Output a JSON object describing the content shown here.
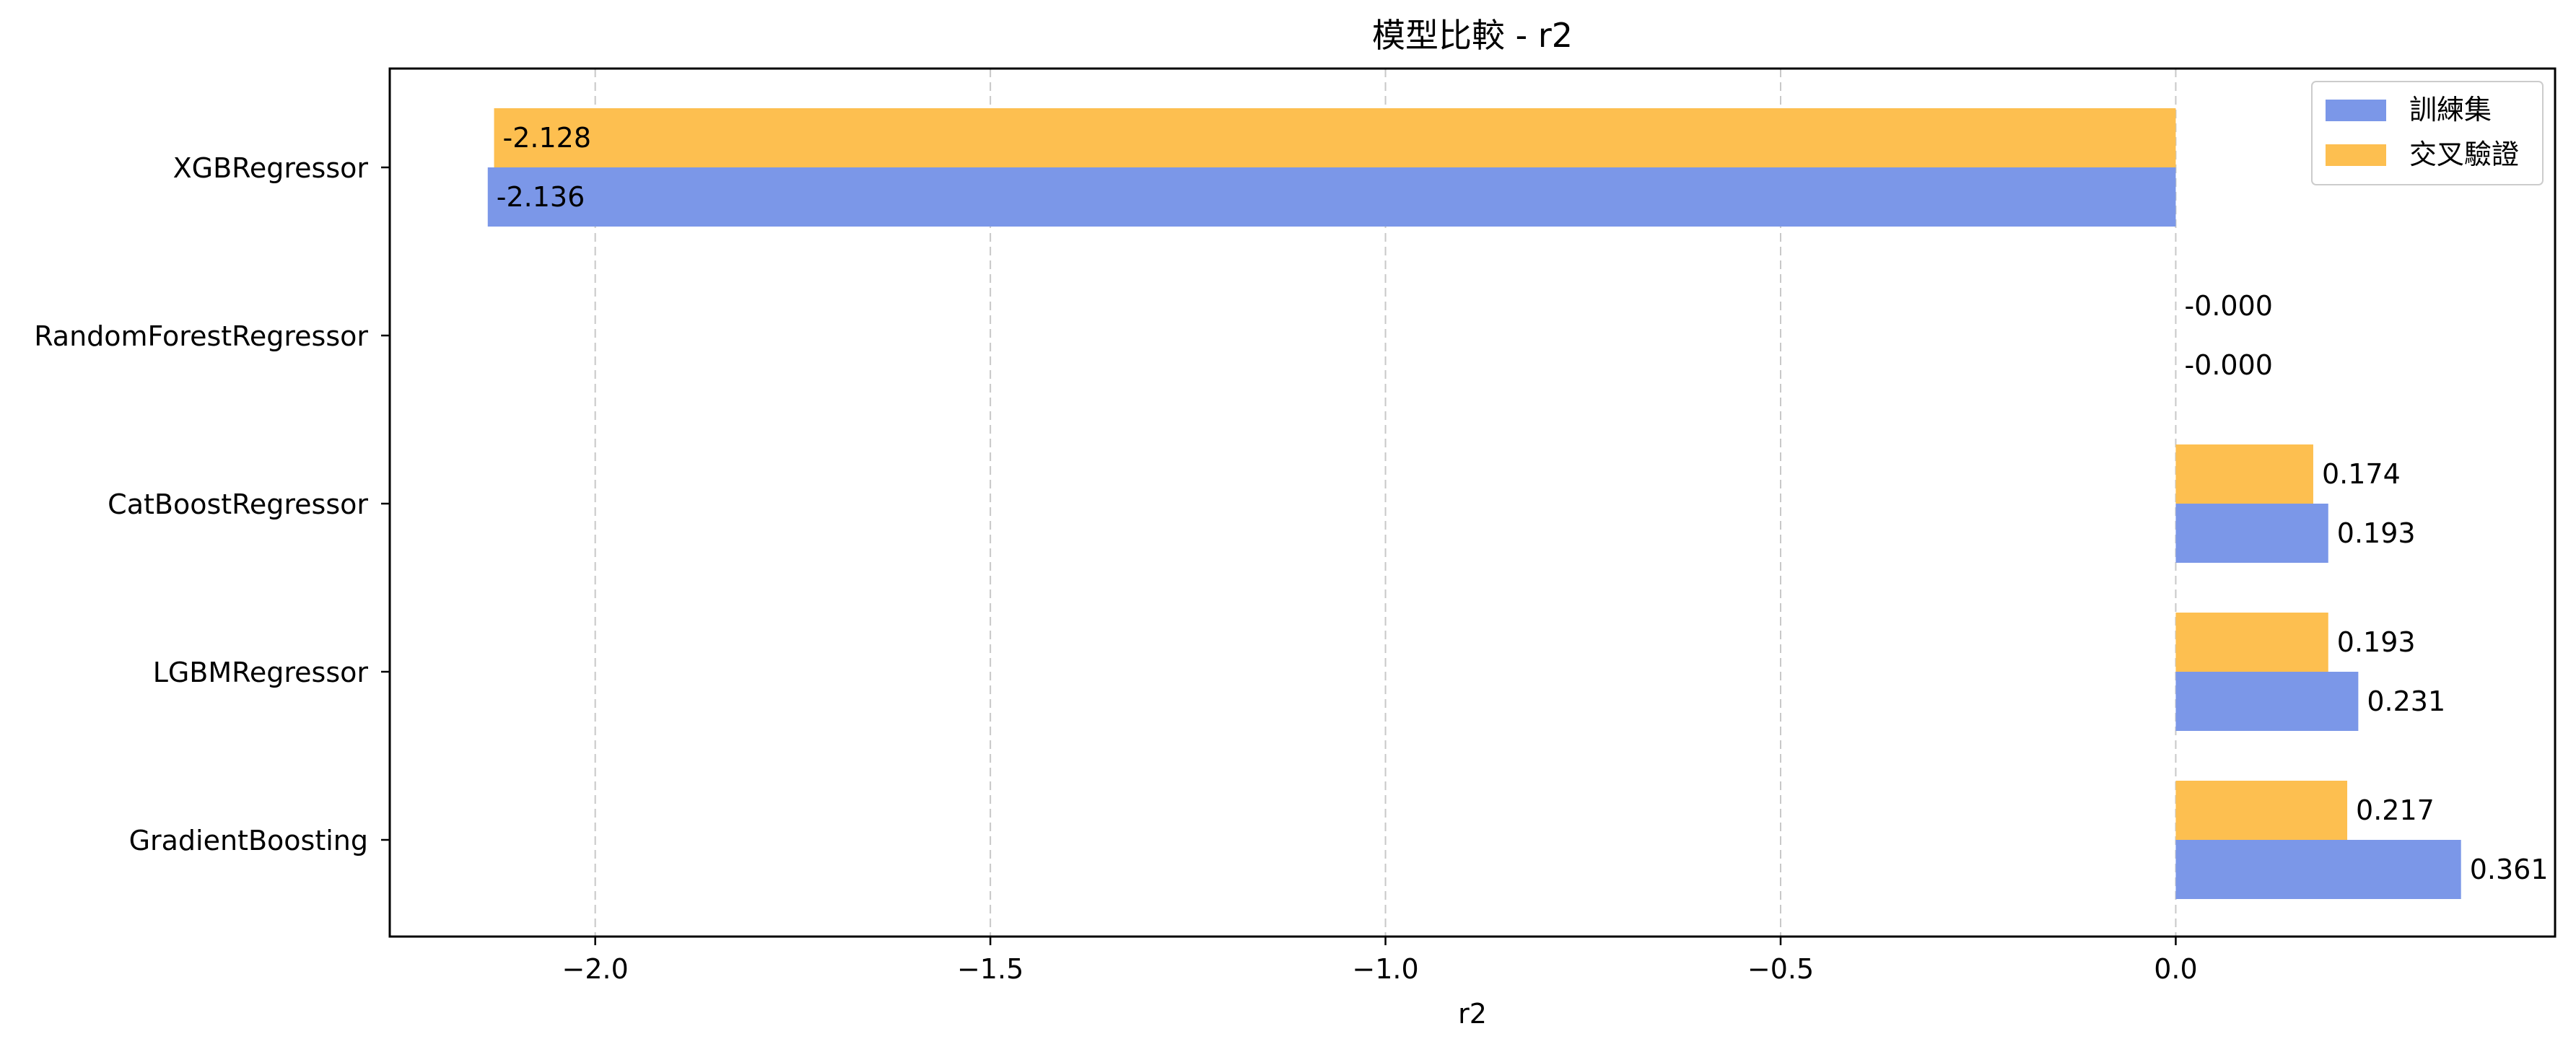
{
  "chart_data": {
    "type": "bar",
    "orientation": "horizontal",
    "title": "模型比較 - r2",
    "xlabel": "r2",
    "ylabel": "",
    "categories": [
      "XGBRegressor",
      "RandomForestRegressor",
      "CatBoostRegressor",
      "LGBMRegressor",
      "GradientBoosting"
    ],
    "series": [
      {
        "name": "訓練集",
        "color": "#7b97e8",
        "values": [
          -2.136,
          -0.0,
          0.193,
          0.231,
          0.361
        ],
        "labels": [
          "-2.136",
          "-0.000",
          "0.193",
          "0.231",
          "0.361"
        ]
      },
      {
        "name": "交叉驗證",
        "color": "#fdbf50",
        "values": [
          -2.128,
          -0.0,
          0.174,
          0.193,
          0.217
        ],
        "labels": [
          "-2.128",
          "-0.000",
          "0.174",
          "0.193",
          "0.217"
        ]
      }
    ],
    "xlim": [
      -2.26,
      0.48
    ],
    "xticks": [
      -2.0,
      -1.5,
      -1.0,
      -0.5,
      0.0
    ],
    "xtick_labels": [
      "−2.0",
      "−1.5",
      "−1.0",
      "−0.5",
      "0.0"
    ],
    "grid": {
      "x": true,
      "y": false,
      "style": "dashed"
    },
    "legend": {
      "placement": "top-right"
    }
  }
}
